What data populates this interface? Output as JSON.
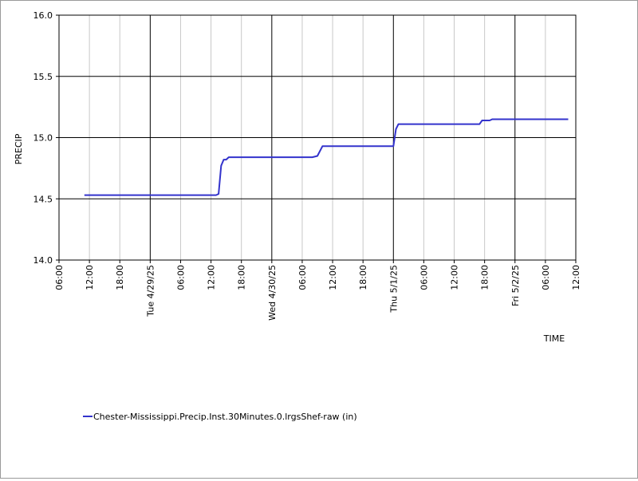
{
  "chart_data": {
    "type": "line",
    "ylabel": "PRECIP",
    "xlabel": "TIME",
    "ylim": [
      14.0,
      16.0
    ],
    "yticks": [
      "14.0",
      "14.5",
      "15.0",
      "15.5",
      "16.0"
    ],
    "xlim": [
      "2025-04-28T06:00",
      "2025-05-02T12:00"
    ],
    "xticks": [
      {
        "t": "2025-04-28T06:00",
        "label": "06:00"
      },
      {
        "t": "2025-04-28T12:00",
        "label": "12:00"
      },
      {
        "t": "2025-04-28T18:00",
        "label": "18:00"
      },
      {
        "t": "2025-04-29T00:00",
        "label": "Tue 4/29/25",
        "major": true
      },
      {
        "t": "2025-04-29T06:00",
        "label": "06:00"
      },
      {
        "t": "2025-04-29T12:00",
        "label": "12:00"
      },
      {
        "t": "2025-04-29T18:00",
        "label": "18:00"
      },
      {
        "t": "2025-04-30T00:00",
        "label": "Wed 4/30/25",
        "major": true
      },
      {
        "t": "2025-04-30T06:00",
        "label": "06:00"
      },
      {
        "t": "2025-04-30T12:00",
        "label": "12:00"
      },
      {
        "t": "2025-04-30T18:00",
        "label": "18:00"
      },
      {
        "t": "2025-05-01T00:00",
        "label": "Thu 5/1/25",
        "major": true
      },
      {
        "t": "2025-05-01T06:00",
        "label": "06:00"
      },
      {
        "t": "2025-05-01T12:00",
        "label": "12:00"
      },
      {
        "t": "2025-05-01T18:00",
        "label": "18:00"
      },
      {
        "t": "2025-05-02T00:00",
        "label": "Fri 5/2/25",
        "major": true
      },
      {
        "t": "2025-05-02T06:00",
        "label": "06:00"
      },
      {
        "t": "2025-05-02T12:00",
        "label": "12:00"
      }
    ],
    "grid": true,
    "legend_position": "bottom-left",
    "series": [
      {
        "name": "Chester-Mississippi.Precip.Inst.30Minutes.0.lrgsShef-raw (in)",
        "color": "#3333cc",
        "points": [
          [
            "2025-04-28T11:00",
            14.53
          ],
          [
            "2025-04-29T13:00",
            14.53
          ],
          [
            "2025-04-29T13:30",
            14.54
          ],
          [
            "2025-04-29T14:00",
            14.77
          ],
          [
            "2025-04-29T14:30",
            14.82
          ],
          [
            "2025-04-29T15:00",
            14.82
          ],
          [
            "2025-04-29T15:30",
            14.84
          ],
          [
            "2025-04-30T08:00",
            14.84
          ],
          [
            "2025-04-30T09:00",
            14.85
          ],
          [
            "2025-04-30T10:00",
            14.93
          ],
          [
            "2025-05-01T00:00",
            14.93
          ],
          [
            "2025-05-01T00:30",
            15.07
          ],
          [
            "2025-05-01T01:00",
            15.11
          ],
          [
            "2025-05-01T17:00",
            15.11
          ],
          [
            "2025-05-01T17:30",
            15.14
          ],
          [
            "2025-05-01T19:00",
            15.14
          ],
          [
            "2025-05-01T19:30",
            15.15
          ],
          [
            "2025-05-02T10:30",
            15.15
          ]
        ]
      }
    ]
  }
}
